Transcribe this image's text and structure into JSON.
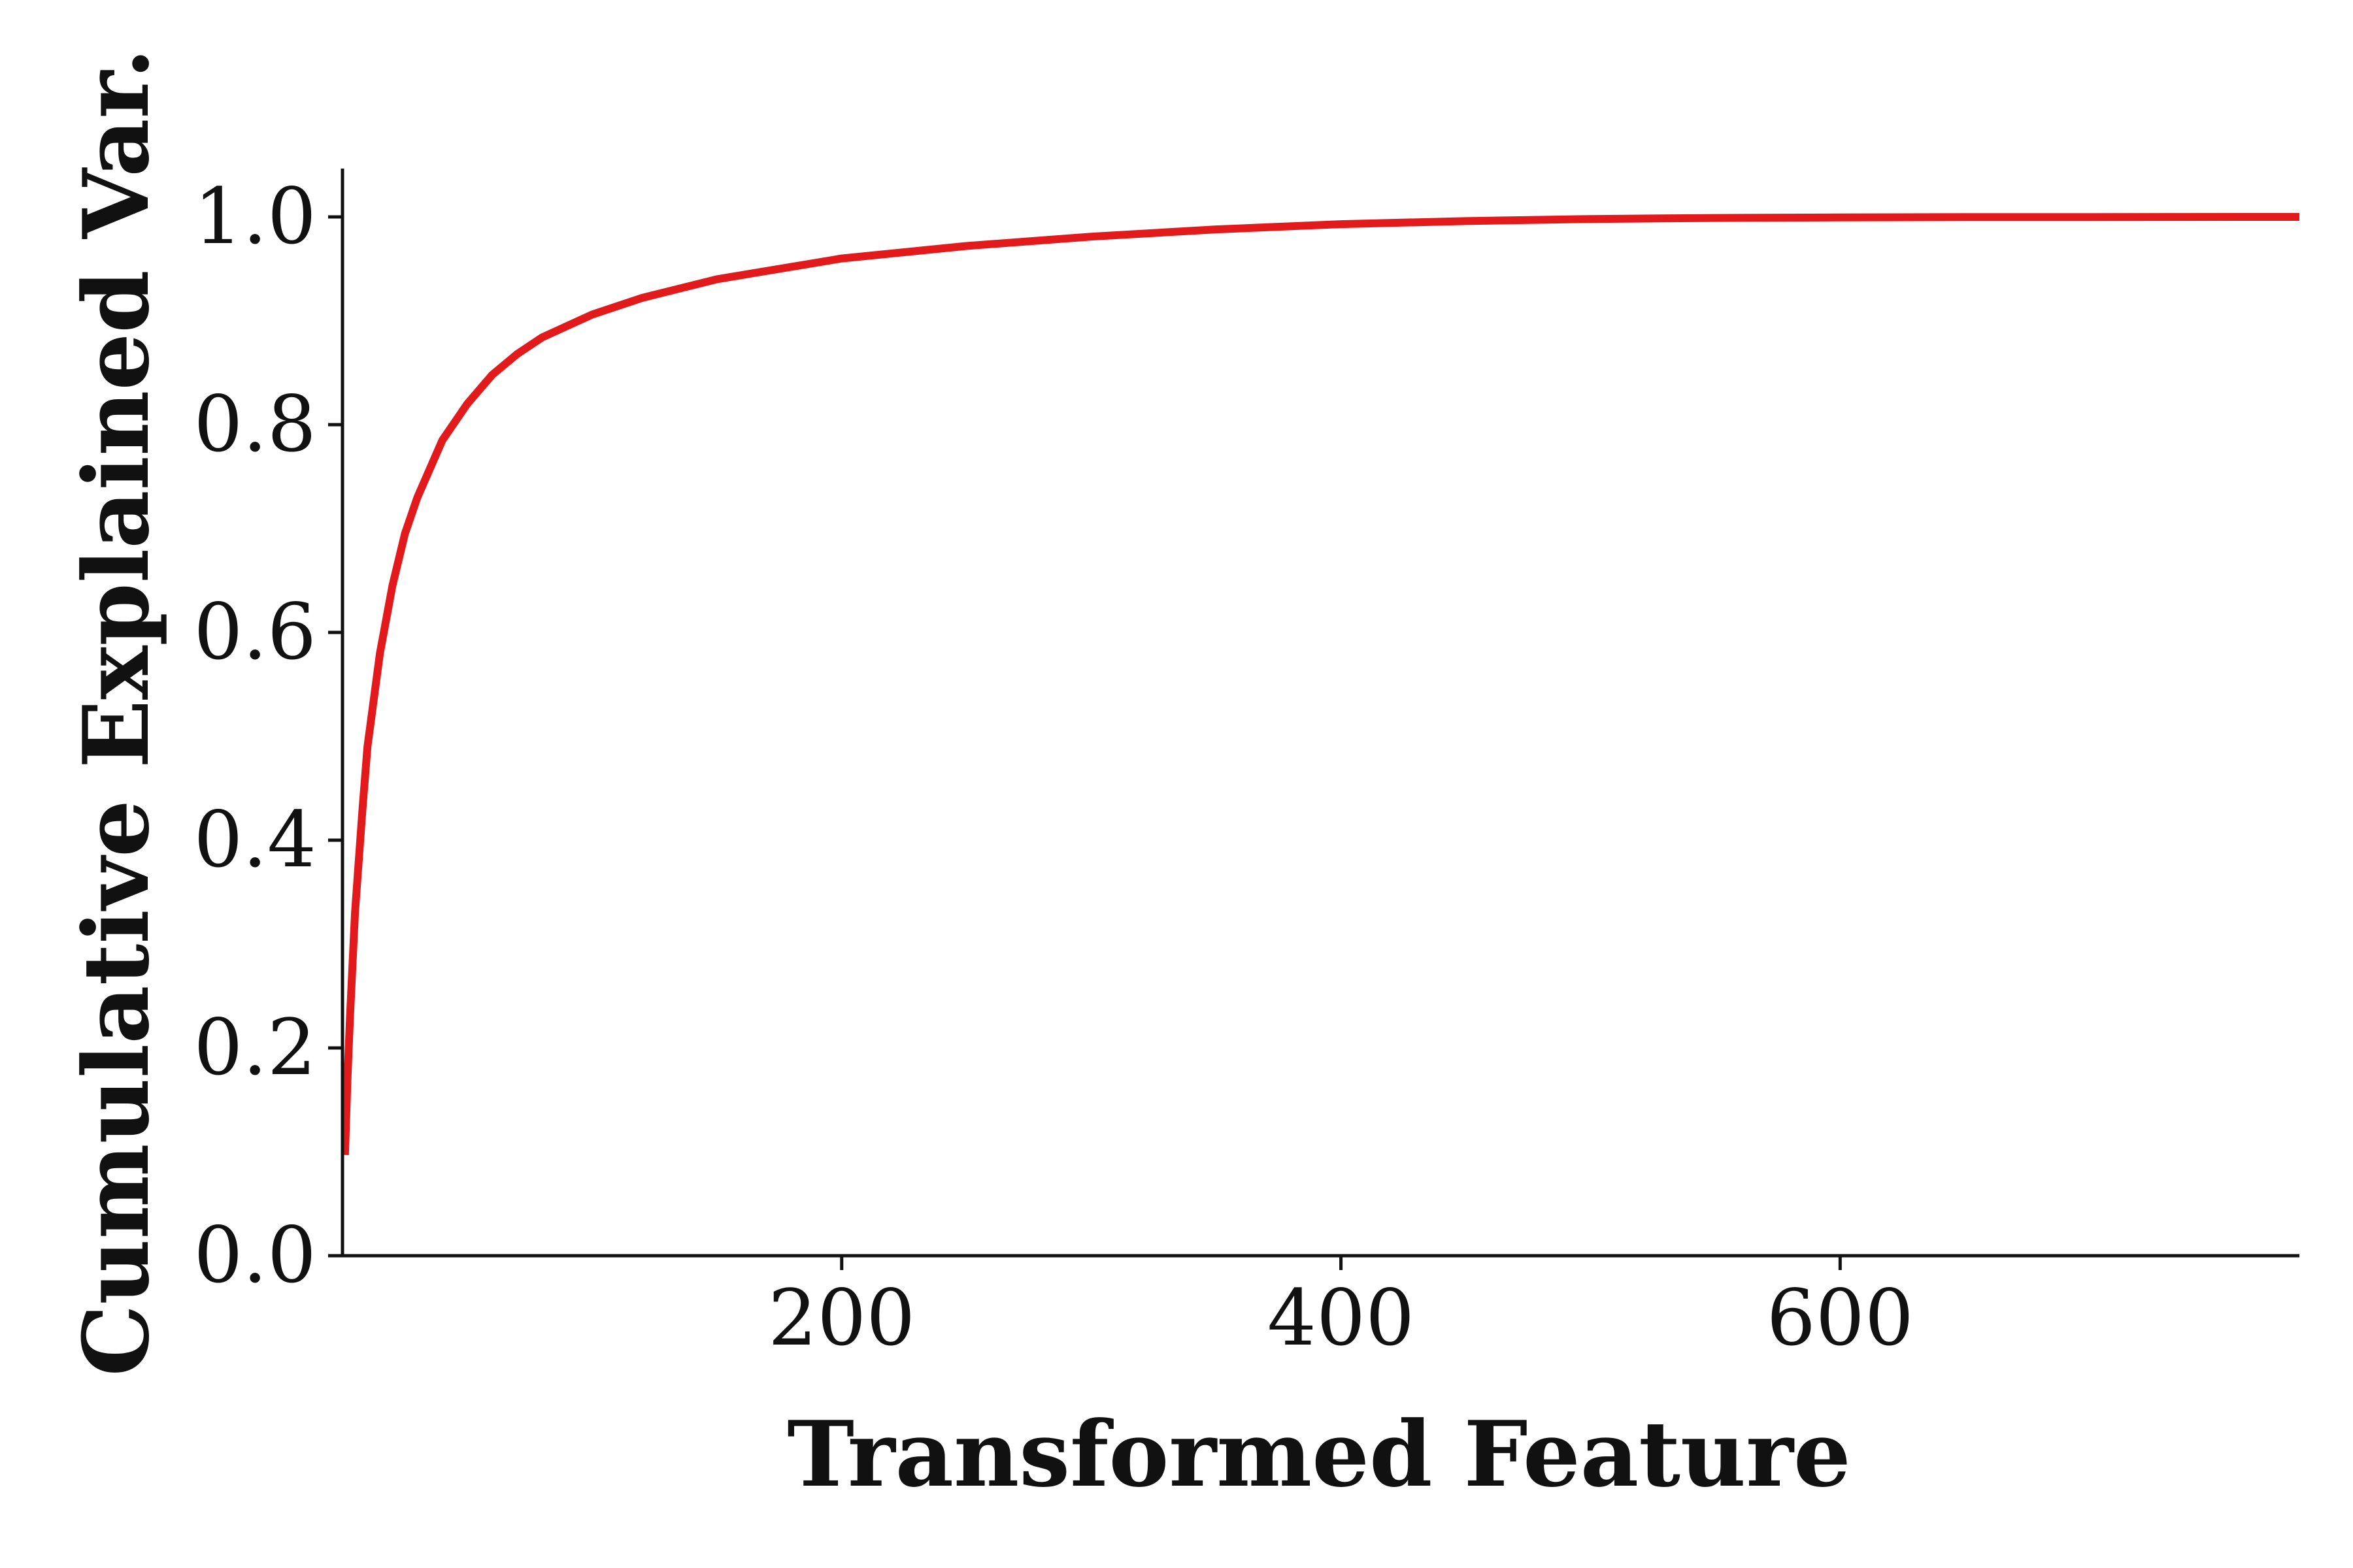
{
  "chart_data": {
    "type": "line",
    "title": "",
    "xlabel": "Transformed Feature",
    "ylabel": "Cumulative Explained Var.",
    "xlim": [
      0,
      784
    ],
    "ylim": [
      0.0,
      1.04
    ],
    "xticks": [
      200,
      400,
      600
    ],
    "xtick_labels": [
      "200",
      "400",
      "600"
    ],
    "yticks": [
      0.0,
      0.2,
      0.4,
      0.6,
      0.8,
      1.0
    ],
    "ytick_labels": [
      "0.0",
      "0.2",
      "0.4",
      "0.6",
      "0.8",
      "1.0"
    ],
    "grid": false,
    "legend": "none",
    "series": [
      {
        "color": "#e31a1c",
        "x": [
          1,
          2,
          3,
          5,
          8,
          10,
          15,
          20,
          25,
          30,
          40,
          50,
          60,
          70,
          80,
          100,
          120,
          150,
          200,
          250,
          300,
          350,
          400,
          450,
          500,
          550,
          600,
          650,
          700,
          784
        ],
        "y": [
          0.097,
          0.17,
          0.23,
          0.33,
          0.43,
          0.49,
          0.58,
          0.645,
          0.695,
          0.73,
          0.785,
          0.82,
          0.848,
          0.868,
          0.884,
          0.906,
          0.922,
          0.94,
          0.96,
          0.972,
          0.981,
          0.988,
          0.993,
          0.996,
          0.998,
          0.999,
          0.9995,
          0.9998,
          0.9999,
          1.0
        ]
      }
    ]
  }
}
